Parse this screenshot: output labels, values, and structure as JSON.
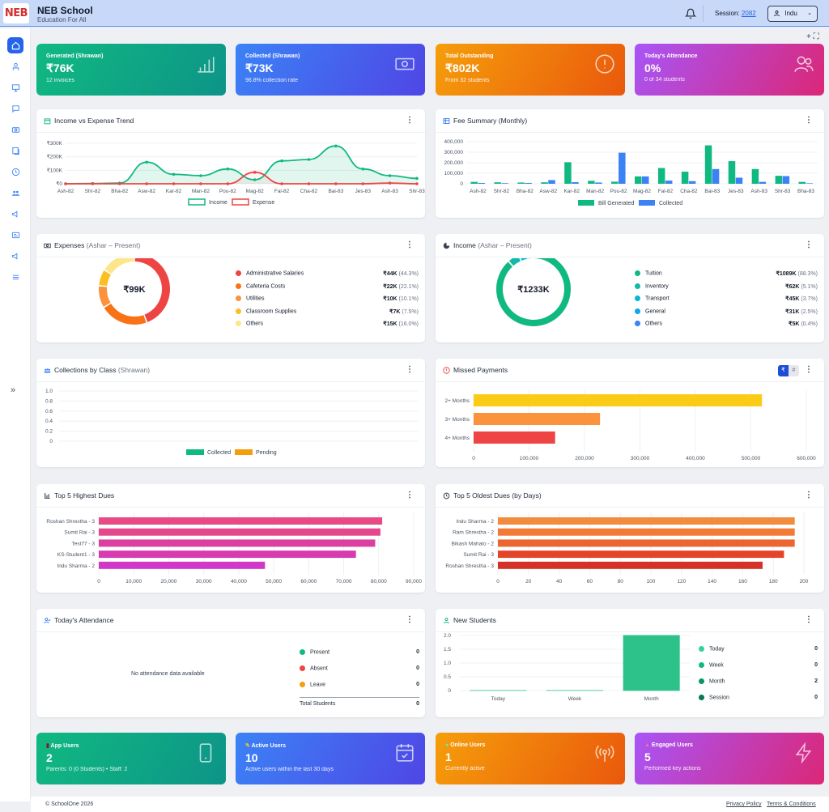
{
  "header": {
    "logo_text": "NEB",
    "school_name": "NEB School",
    "tagline": "Education For All",
    "session_label": "Session:",
    "session_value": "2082",
    "user": "Indu"
  },
  "stats": [
    {
      "title": "Generated (Shrawan)",
      "value": "₹76K",
      "sub": "12 invoices",
      "icon": "bar-chart-icon"
    },
    {
      "title": "Collected (Shrawan)",
      "value": "₹73K",
      "sub": "96.8% collection rate",
      "icon": "cash-icon"
    },
    {
      "title": "Total Outstanding",
      "value": "₹802K",
      "sub": "From 32 students",
      "icon": "alert-circle-icon"
    },
    {
      "title": "Today's Attendance",
      "value": "0%",
      "sub": "0 of 34 students",
      "icon": "users-icon"
    }
  ],
  "income_expense": {
    "title": "Income vs Expense Trend",
    "legend": [
      "Income",
      "Expense"
    ]
  },
  "fee_summary": {
    "title": "Fee Summary (Monthly)",
    "legend": [
      "Bill Generated",
      "Collected"
    ]
  },
  "expenses": {
    "title": "Expenses",
    "sub": "(Ashar – Present)",
    "center": "₹99K",
    "items": [
      {
        "label": "Administrative Salaries",
        "amount": "₹44K",
        "pct": "(44.3%)",
        "color": "#ef4444"
      },
      {
        "label": "Cafeteria Costs",
        "amount": "₹22K",
        "pct": "(22.1%)",
        "color": "#f97316"
      },
      {
        "label": "Utilities",
        "amount": "₹10K",
        "pct": "(10.1%)",
        "color": "#fb923c"
      },
      {
        "label": "Classroom Supplies",
        "amount": "₹7K",
        "pct": "(7.5%)",
        "color": "#fbbf24"
      },
      {
        "label": "Others",
        "amount": "₹15K",
        "pct": "(16.0%)",
        "color": "#fde68a"
      }
    ]
  },
  "income": {
    "title": "Income",
    "sub": "(Ashar – Present)",
    "center": "₹1233K",
    "items": [
      {
        "label": "Tuition",
        "amount": "₹1089K",
        "pct": "(88.3%)",
        "color": "#10b981"
      },
      {
        "label": "Inventory",
        "amount": "₹62K",
        "pct": "(5.1%)",
        "color": "#14b8a6"
      },
      {
        "label": "Transport",
        "amount": "₹45K",
        "pct": "(3.7%)",
        "color": "#06b6d4"
      },
      {
        "label": "General",
        "amount": "₹31K",
        "pct": "(2.5%)",
        "color": "#0ea5e9"
      },
      {
        "label": "Others",
        "amount": "₹5K",
        "pct": "(0.4%)",
        "color": "#3b82f6"
      }
    ]
  },
  "collections_class": {
    "title": "Collections by Class",
    "sub": "(Shrawan)",
    "legend": [
      "Collected",
      "Pending"
    ]
  },
  "missed": {
    "title": "Missed Payments",
    "toggle_on": "₹",
    "toggle_off": "#"
  },
  "highest_dues": {
    "title": "Top 5 Highest Dues"
  },
  "oldest_dues": {
    "title": "Top 5 Oldest Dues (by Days)"
  },
  "attendance": {
    "title": "Today's Attendance",
    "empty": "No attendance data available",
    "rows": [
      {
        "label": "Present",
        "value": "0",
        "color": "#10b981"
      },
      {
        "label": "Absent",
        "value": "0",
        "color": "#ef4444"
      },
      {
        "label": "Leave",
        "value": "0",
        "color": "#f59e0b"
      }
    ],
    "total_label": "Total Students",
    "total_value": "0"
  },
  "new_students": {
    "title": "New Students",
    "rows": [
      {
        "label": "Today",
        "value": "0"
      },
      {
        "label": "Week",
        "value": "0"
      },
      {
        "label": "Month",
        "value": "2"
      },
      {
        "label": "Session",
        "value": "0"
      }
    ]
  },
  "bottom_stats": [
    {
      "title": "App Users",
      "value": "2",
      "sub": "Parents: 0 (0 Students) • Staff: 2",
      "icon": "phone-icon"
    },
    {
      "title": "Active Users",
      "value": "10",
      "sub": "Active users within the last 30 days",
      "icon": "calendar-check-icon"
    },
    {
      "title": "Online Users",
      "value": "1",
      "sub": "Currently active",
      "icon": "broadcast-icon"
    },
    {
      "title": "Engaged Users",
      "value": "5",
      "sub": "Performed key actions",
      "icon": "lightning-icon"
    }
  ],
  "footer": {
    "copyright": "© SchoolOne 2026",
    "privacy": "Privacy Policy",
    "terms": "Terms & Conditions"
  },
  "chart_data": [
    {
      "type": "line",
      "title": "Income vs Expense Trend",
      "x": [
        "Ash-82",
        "Shr-82",
        "Bha-82",
        "Asw-82",
        "Kar-82",
        "Man-82",
        "Pou-82",
        "Mag-82",
        "Fal-82",
        "Cha-82",
        "Bai-83",
        "Jes-83",
        "Ash-83",
        "Shr-83"
      ],
      "yticks": [
        "₹0",
        "₹100K",
        "₹200K",
        "₹300K"
      ],
      "ylim": [
        0,
        300000
      ],
      "series": [
        {
          "name": "Income",
          "color": "#10b981",
          "values": [
            0,
            2000,
            5000,
            160000,
            70000,
            60000,
            110000,
            30000,
            170000,
            180000,
            280000,
            110000,
            60000,
            40000
          ]
        },
        {
          "name": "Expense",
          "color": "#ef4444",
          "values": [
            0,
            0,
            0,
            0,
            0,
            0,
            0,
            85000,
            0,
            0,
            0,
            0,
            5000,
            0
          ]
        }
      ]
    },
    {
      "type": "bar",
      "title": "Fee Summary (Monthly)",
      "categories": [
        "Ash-82",
        "Shr-82",
        "Bha-82",
        "Asw-82",
        "Kar-82",
        "Man-82",
        "Pou-82",
        "Mag-82",
        "Fal-82",
        "Cha-82",
        "Bai-83",
        "Jes-83",
        "Ash-83",
        "Shr-83",
        "Bha-83"
      ],
      "yticks": [
        "0",
        "100,000",
        "200,000",
        "300,000",
        "400,000"
      ],
      "ylim": [
        0,
        400000
      ],
      "series": [
        {
          "name": "Bill Generated",
          "color": "#10b981",
          "values": [
            18000,
            14000,
            12000,
            14000,
            205000,
            28000,
            20000,
            70000,
            150000,
            115000,
            365000,
            215000,
            140000,
            76000,
            18000
          ]
        },
        {
          "name": "Collected",
          "color": "#3b82f6",
          "values": [
            8000,
            6000,
            8000,
            35000,
            15000,
            12000,
            295000,
            70000,
            30000,
            25000,
            140000,
            58000,
            18000,
            73000,
            5000
          ]
        }
      ]
    },
    {
      "type": "bar",
      "title": "Collections by Class",
      "categories": [],
      "yticks": [
        "0",
        "0.2",
        "0.4",
        "0.6",
        "0.8",
        "1.0"
      ],
      "ylim": [
        0,
        1
      ],
      "series": [
        {
          "name": "Collected",
          "color": "#10b981",
          "values": []
        },
        {
          "name": "Pending",
          "color": "#f59e0b",
          "values": []
        }
      ]
    },
    {
      "type": "bar",
      "title": "Missed Payments",
      "orientation": "horizontal",
      "categories": [
        "2+ Months",
        "3+ Months",
        "4+ Months"
      ],
      "values": [
        520000,
        228000,
        147000
      ],
      "colors": [
        "#facc15",
        "#fb923c",
        "#ef4444"
      ],
      "xticks": [
        "0",
        "100,000",
        "200,000",
        "300,000",
        "400,000",
        "500,000",
        "600,000"
      ],
      "xlim": [
        0,
        600000
      ]
    },
    {
      "type": "bar",
      "title": "Top 5 Highest Dues",
      "orientation": "horizontal",
      "categories": [
        "Roshan Shrestha - 3",
        "Sumit Rai - 3",
        "Test77 - 3",
        "KS-Student1 - 3",
        "Indu Sharma - 2"
      ],
      "values": [
        81000,
        80500,
        79000,
        73500,
        47500
      ],
      "colors": [
        "#e84a86",
        "#e5478d",
        "#db3fa0",
        "#d63bb0",
        "#d238c8"
      ],
      "xticks": [
        "0",
        "10,000",
        "20,000",
        "30,000",
        "40,000",
        "50,000",
        "60,000",
        "70,000",
        "80,000",
        "90,000"
      ],
      "xlim": [
        0,
        90000
      ]
    },
    {
      "type": "bar",
      "title": "Top 5 Oldest Dues (by Days)",
      "orientation": "horizontal",
      "categories": [
        "Indu Sharma - 2",
        "Ram Shrestha - 2",
        "Bikash Mahato - 2",
        "Sumit Rai - 3",
        "Roshan Shrestha - 3"
      ],
      "values": [
        194,
        194,
        194,
        187,
        173
      ],
      "colors": [
        "#f28b3d",
        "#f07a36",
        "#eb6530",
        "#e4452a",
        "#d63126"
      ],
      "xticks": [
        "0",
        "20",
        "40",
        "60",
        "80",
        "100",
        "120",
        "140",
        "160",
        "180",
        "200"
      ],
      "xlim": [
        0,
        200
      ]
    },
    {
      "type": "bar",
      "title": "New Students",
      "categories": [
        "Today",
        "Week",
        "Month"
      ],
      "values": [
        0,
        0,
        2
      ],
      "yticks": [
        "0",
        "0.5",
        "1.0",
        "1.5",
        "2.0"
      ],
      "ylim": [
        0,
        2
      ]
    }
  ]
}
